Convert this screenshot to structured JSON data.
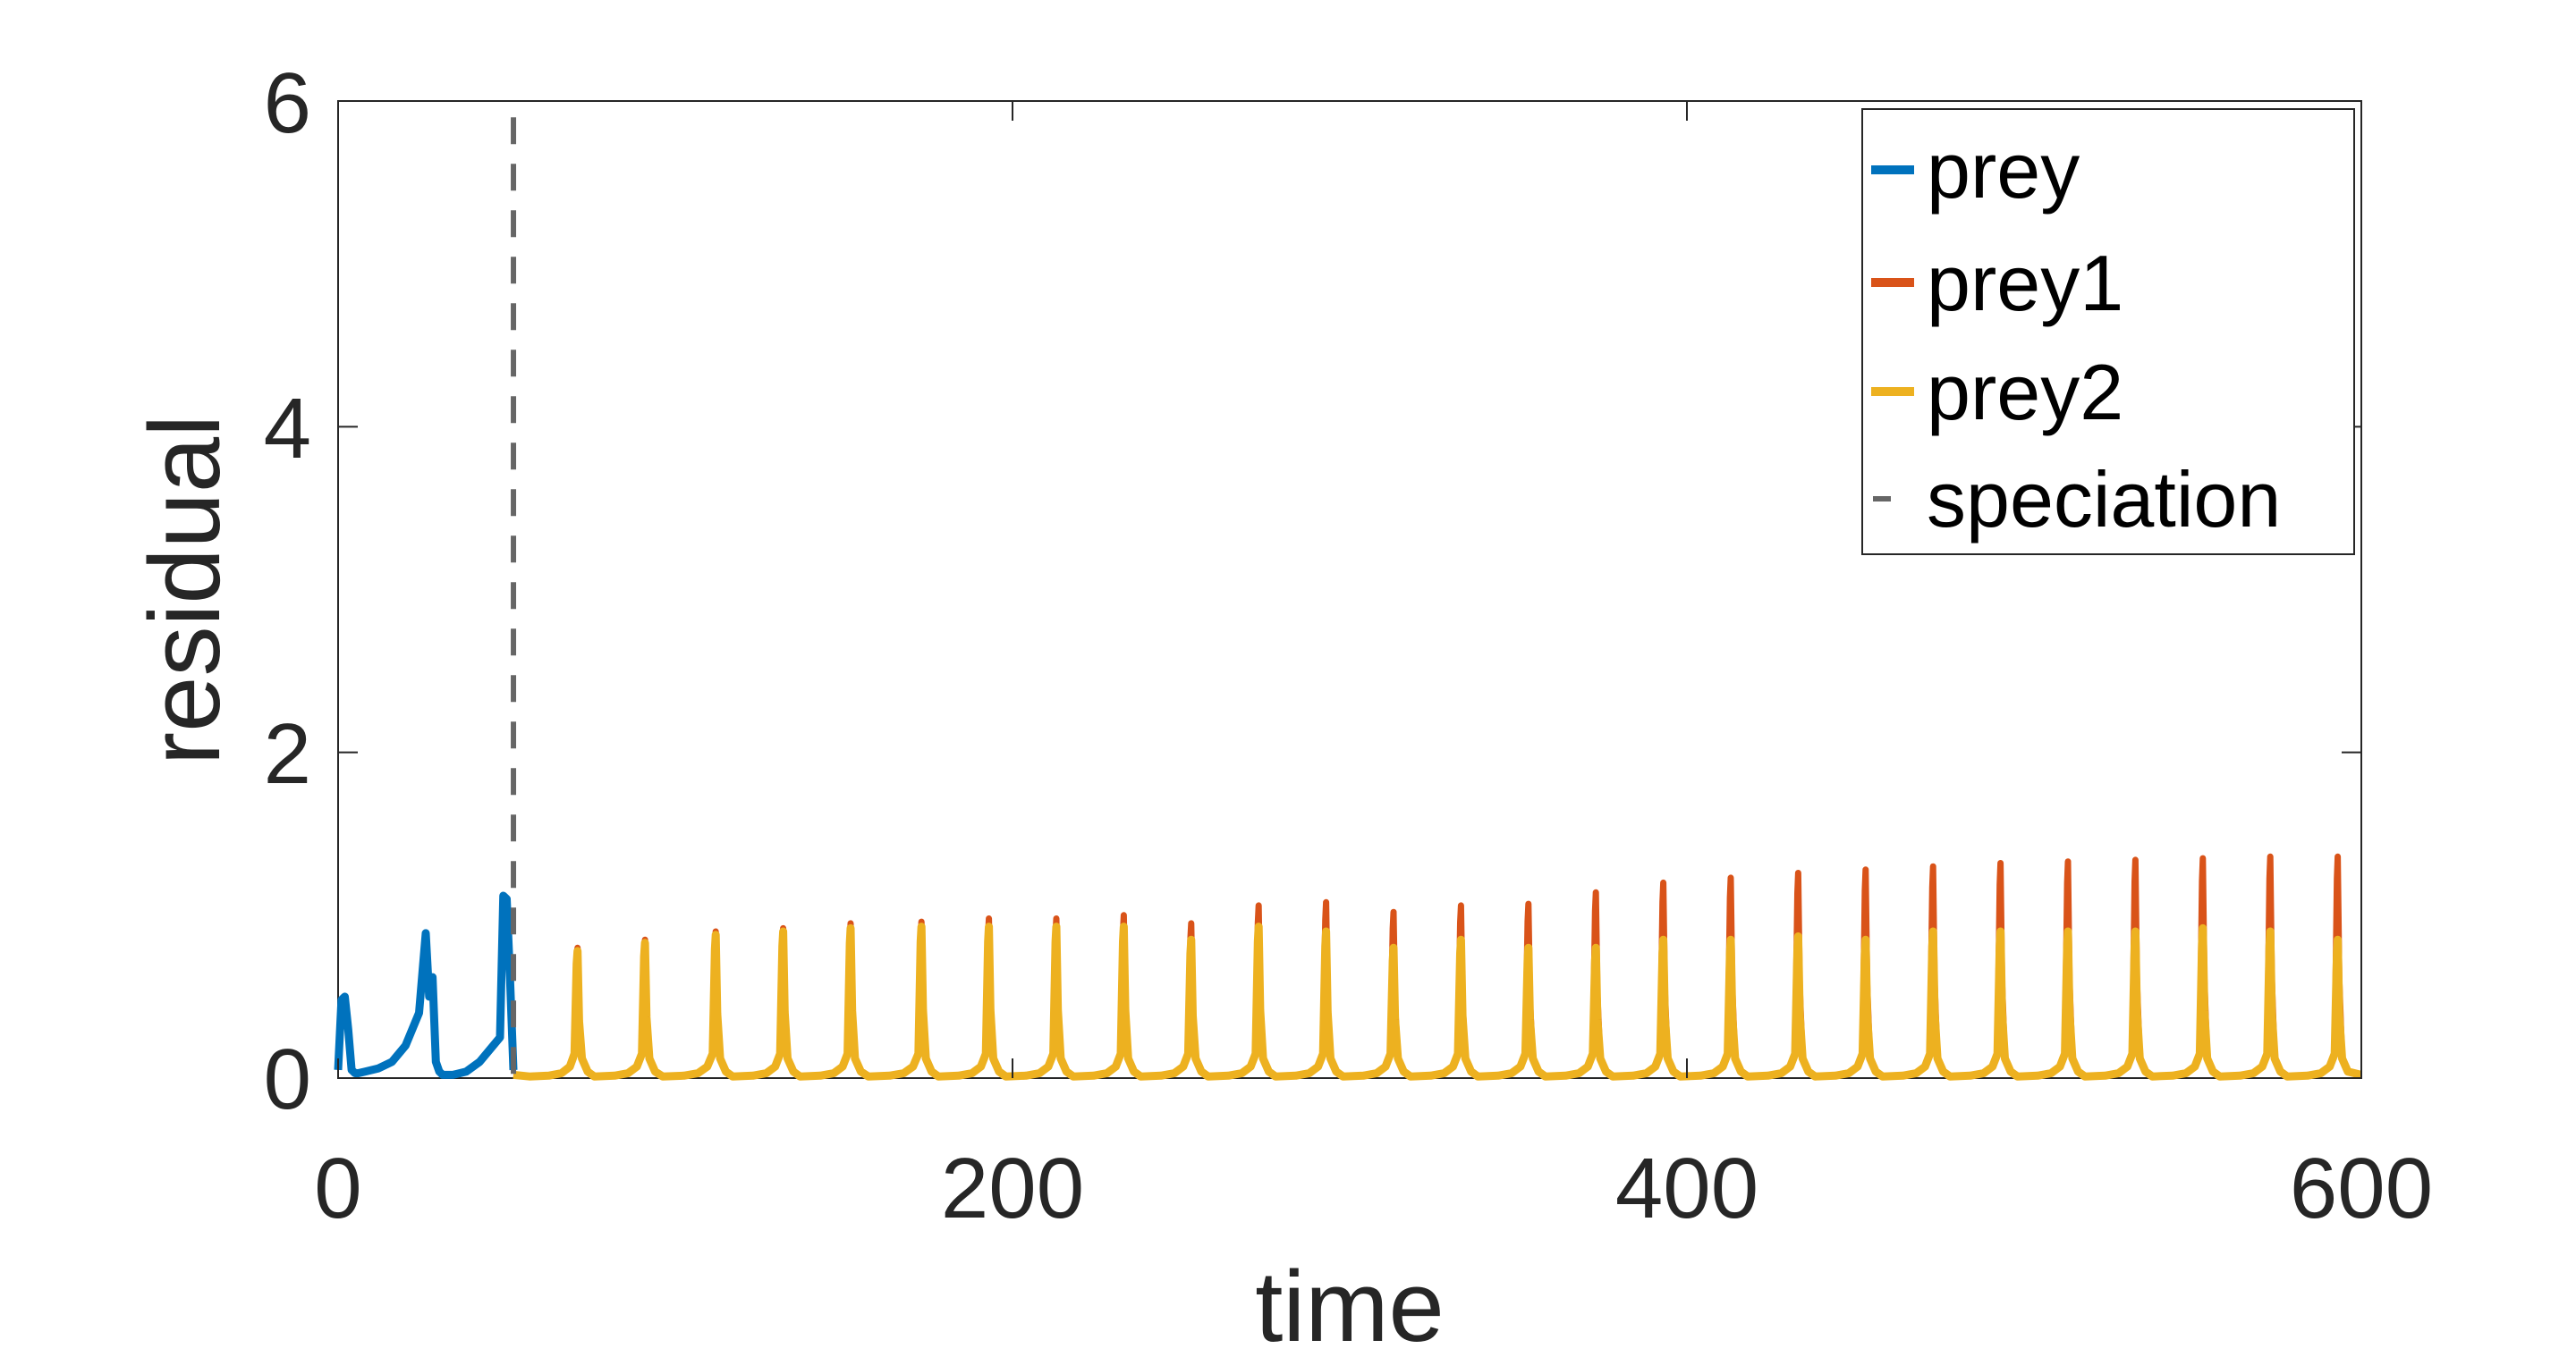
{
  "chart_data": {
    "type": "line",
    "xlabel": "time",
    "ylabel": "residual",
    "xlim": [
      0,
      600
    ],
    "ylim": [
      0,
      6
    ],
    "xticks": [
      "0",
      "200",
      "400",
      "600"
    ],
    "yticks": [
      "0",
      "2",
      "4",
      "6"
    ],
    "grid": false,
    "legend_position": "top-right",
    "speciation_time": 52,
    "legend": {
      "prey": "prey",
      "prey1": "prey1",
      "prey2": "prey2",
      "speciation": "speciation"
    },
    "colors": {
      "prey": "#0072BD",
      "prey1": "#D95319",
      "prey2": "#EDB120",
      "speciation": "#666666"
    },
    "prey_series": {
      "name": "prey",
      "x": [
        0,
        1,
        2,
        3,
        4,
        5,
        6,
        8,
        12,
        16,
        20,
        24,
        26,
        27,
        28,
        29,
        30,
        31,
        32,
        34,
        38,
        42,
        46,
        48,
        49,
        50,
        51,
        52
      ],
      "y": [
        0.05,
        0.48,
        0.5,
        0.3,
        0.05,
        0.03,
        0.03,
        0.04,
        0.06,
        0.1,
        0.2,
        0.4,
        0.89,
        0.5,
        0.62,
        0.1,
        0.04,
        0.02,
        0.02,
        0.02,
        0.04,
        0.1,
        0.2,
        0.25,
        1.12,
        1.1,
        0.6,
        0.05
      ]
    },
    "pulse_times": [
      71,
      91,
      112,
      132,
      152,
      173,
      193,
      213,
      233,
      253,
      273,
      293,
      313,
      333,
      353,
      373,
      393,
      413,
      433,
      453,
      473,
      493,
      513,
      533,
      553,
      573,
      593
    ],
    "prey1_peaks": [
      0.8,
      0.85,
      0.9,
      0.92,
      0.95,
      0.96,
      0.98,
      0.98,
      1.0,
      0.95,
      1.06,
      1.08,
      1.02,
      1.06,
      1.07,
      1.14,
      1.2,
      1.23,
      1.26,
      1.28,
      1.3,
      1.32,
      1.33,
      1.34,
      1.35,
      1.36,
      1.36
    ],
    "prey2_peaks": [
      0.78,
      0.83,
      0.88,
      0.9,
      0.92,
      0.93,
      0.93,
      0.93,
      0.93,
      0.85,
      0.93,
      0.9,
      0.8,
      0.85,
      0.8,
      0.8,
      0.85,
      0.85,
      0.87,
      0.85,
      0.9,
      0.9,
      0.9,
      0.9,
      0.92,
      0.9,
      0.85
    ]
  }
}
